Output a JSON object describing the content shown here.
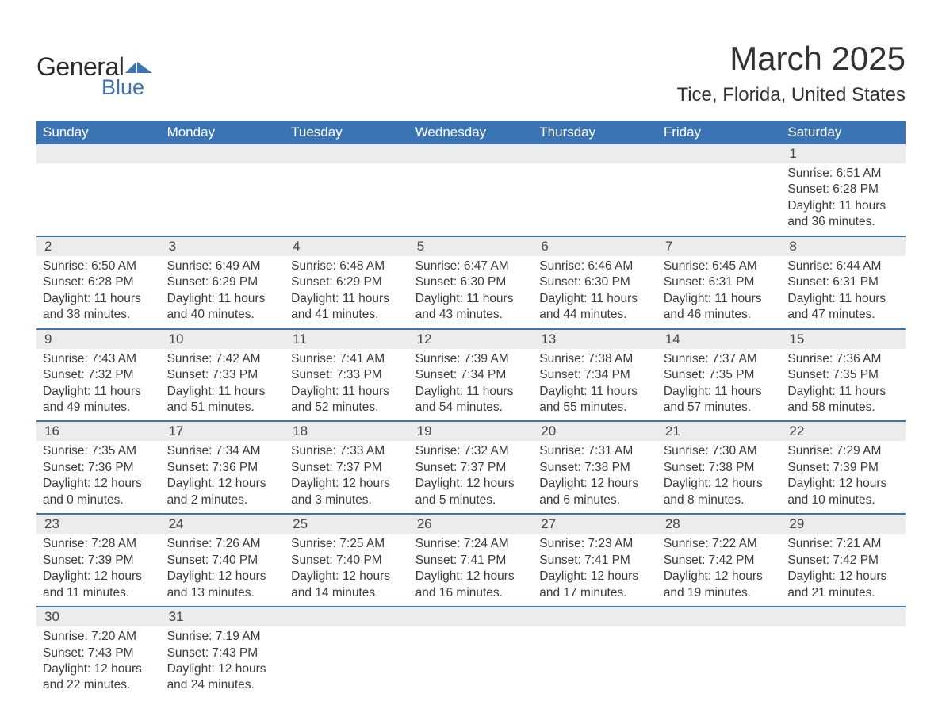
{
  "brand": {
    "general": "General",
    "blue": "Blue",
    "flag_color": "#3a74b3"
  },
  "title": {
    "month": "March 2025",
    "location": "Tice, Florida, United States"
  },
  "style": {
    "header_bg": "#3a74b3",
    "header_fg": "#ffffff",
    "daynum_bg": "#ececec",
    "row_divider": "#3a74b3",
    "body_bg": "#ffffff",
    "text_color": "#3a3a3a",
    "month_fontsize": 42,
    "location_fontsize": 24,
    "dayheader_fontsize": 17,
    "body_fontsize": 15.5
  },
  "day_headers": [
    "Sunday",
    "Monday",
    "Tuesday",
    "Wednesday",
    "Thursday",
    "Friday",
    "Saturday"
  ],
  "weeks": [
    [
      {
        "n": "",
        "lines": []
      },
      {
        "n": "",
        "lines": []
      },
      {
        "n": "",
        "lines": []
      },
      {
        "n": "",
        "lines": []
      },
      {
        "n": "",
        "lines": []
      },
      {
        "n": "",
        "lines": []
      },
      {
        "n": "1",
        "lines": [
          "Sunrise: 6:51 AM",
          "Sunset: 6:28 PM",
          "Daylight: 11 hours and 36 minutes."
        ]
      }
    ],
    [
      {
        "n": "2",
        "lines": [
          "Sunrise: 6:50 AM",
          "Sunset: 6:28 PM",
          "Daylight: 11 hours and 38 minutes."
        ]
      },
      {
        "n": "3",
        "lines": [
          "Sunrise: 6:49 AM",
          "Sunset: 6:29 PM",
          "Daylight: 11 hours and 40 minutes."
        ]
      },
      {
        "n": "4",
        "lines": [
          "Sunrise: 6:48 AM",
          "Sunset: 6:29 PM",
          "Daylight: 11 hours and 41 minutes."
        ]
      },
      {
        "n": "5",
        "lines": [
          "Sunrise: 6:47 AM",
          "Sunset: 6:30 PM",
          "Daylight: 11 hours and 43 minutes."
        ]
      },
      {
        "n": "6",
        "lines": [
          "Sunrise: 6:46 AM",
          "Sunset: 6:30 PM",
          "Daylight: 11 hours and 44 minutes."
        ]
      },
      {
        "n": "7",
        "lines": [
          "Sunrise: 6:45 AM",
          "Sunset: 6:31 PM",
          "Daylight: 11 hours and 46 minutes."
        ]
      },
      {
        "n": "8",
        "lines": [
          "Sunrise: 6:44 AM",
          "Sunset: 6:31 PM",
          "Daylight: 11 hours and 47 minutes."
        ]
      }
    ],
    [
      {
        "n": "9",
        "lines": [
          "Sunrise: 7:43 AM",
          "Sunset: 7:32 PM",
          "Daylight: 11 hours and 49 minutes."
        ]
      },
      {
        "n": "10",
        "lines": [
          "Sunrise: 7:42 AM",
          "Sunset: 7:33 PM",
          "Daylight: 11 hours and 51 minutes."
        ]
      },
      {
        "n": "11",
        "lines": [
          "Sunrise: 7:41 AM",
          "Sunset: 7:33 PM",
          "Daylight: 11 hours and 52 minutes."
        ]
      },
      {
        "n": "12",
        "lines": [
          "Sunrise: 7:39 AM",
          "Sunset: 7:34 PM",
          "Daylight: 11 hours and 54 minutes."
        ]
      },
      {
        "n": "13",
        "lines": [
          "Sunrise: 7:38 AM",
          "Sunset: 7:34 PM",
          "Daylight: 11 hours and 55 minutes."
        ]
      },
      {
        "n": "14",
        "lines": [
          "Sunrise: 7:37 AM",
          "Sunset: 7:35 PM",
          "Daylight: 11 hours and 57 minutes."
        ]
      },
      {
        "n": "15",
        "lines": [
          "Sunrise: 7:36 AM",
          "Sunset: 7:35 PM",
          "Daylight: 11 hours and 58 minutes."
        ]
      }
    ],
    [
      {
        "n": "16",
        "lines": [
          "Sunrise: 7:35 AM",
          "Sunset: 7:36 PM",
          "Daylight: 12 hours and 0 minutes."
        ]
      },
      {
        "n": "17",
        "lines": [
          "Sunrise: 7:34 AM",
          "Sunset: 7:36 PM",
          "Daylight: 12 hours and 2 minutes."
        ]
      },
      {
        "n": "18",
        "lines": [
          "Sunrise: 7:33 AM",
          "Sunset: 7:37 PM",
          "Daylight: 12 hours and 3 minutes."
        ]
      },
      {
        "n": "19",
        "lines": [
          "Sunrise: 7:32 AM",
          "Sunset: 7:37 PM",
          "Daylight: 12 hours and 5 minutes."
        ]
      },
      {
        "n": "20",
        "lines": [
          "Sunrise: 7:31 AM",
          "Sunset: 7:38 PM",
          "Daylight: 12 hours and 6 minutes."
        ]
      },
      {
        "n": "21",
        "lines": [
          "Sunrise: 7:30 AM",
          "Sunset: 7:38 PM",
          "Daylight: 12 hours and 8 minutes."
        ]
      },
      {
        "n": "22",
        "lines": [
          "Sunrise: 7:29 AM",
          "Sunset: 7:39 PM",
          "Daylight: 12 hours and 10 minutes."
        ]
      }
    ],
    [
      {
        "n": "23",
        "lines": [
          "Sunrise: 7:28 AM",
          "Sunset: 7:39 PM",
          "Daylight: 12 hours and 11 minutes."
        ]
      },
      {
        "n": "24",
        "lines": [
          "Sunrise: 7:26 AM",
          "Sunset: 7:40 PM",
          "Daylight: 12 hours and 13 minutes."
        ]
      },
      {
        "n": "25",
        "lines": [
          "Sunrise: 7:25 AM",
          "Sunset: 7:40 PM",
          "Daylight: 12 hours and 14 minutes."
        ]
      },
      {
        "n": "26",
        "lines": [
          "Sunrise: 7:24 AM",
          "Sunset: 7:41 PM",
          "Daylight: 12 hours and 16 minutes."
        ]
      },
      {
        "n": "27",
        "lines": [
          "Sunrise: 7:23 AM",
          "Sunset: 7:41 PM",
          "Daylight: 12 hours and 17 minutes."
        ]
      },
      {
        "n": "28",
        "lines": [
          "Sunrise: 7:22 AM",
          "Sunset: 7:42 PM",
          "Daylight: 12 hours and 19 minutes."
        ]
      },
      {
        "n": "29",
        "lines": [
          "Sunrise: 7:21 AM",
          "Sunset: 7:42 PM",
          "Daylight: 12 hours and 21 minutes."
        ]
      }
    ],
    [
      {
        "n": "30",
        "lines": [
          "Sunrise: 7:20 AM",
          "Sunset: 7:43 PM",
          "Daylight: 12 hours and 22 minutes."
        ]
      },
      {
        "n": "31",
        "lines": [
          "Sunrise: 7:19 AM",
          "Sunset: 7:43 PM",
          "Daylight: 12 hours and 24 minutes."
        ]
      },
      {
        "n": "",
        "lines": []
      },
      {
        "n": "",
        "lines": []
      },
      {
        "n": "",
        "lines": []
      },
      {
        "n": "",
        "lines": []
      },
      {
        "n": "",
        "lines": []
      }
    ]
  ]
}
